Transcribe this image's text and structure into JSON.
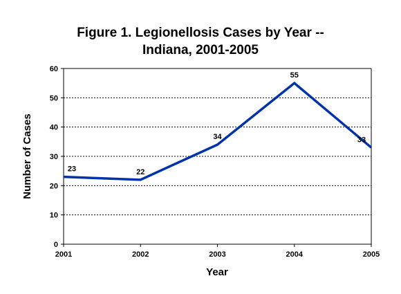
{
  "chart_data": {
    "type": "line",
    "title_line1": "Figure 1. Legionellosis Cases by Year --",
    "title_line2": "Indiana, 2001-2005",
    "xlabel": "Year",
    "ylabel": "Number of Cases",
    "categories": [
      "2001",
      "2002",
      "2003",
      "2004",
      "2005"
    ],
    "y_ticks": [
      "0",
      "10",
      "20",
      "30",
      "40",
      "50",
      "60"
    ],
    "ylim": [
      0,
      60
    ],
    "grid": "horizontal dotted",
    "series": [
      {
        "values": [
          23,
          22,
          34,
          55,
          33
        ],
        "labels": [
          "23",
          "22",
          "34",
          "55",
          "33"
        ],
        "color": "#0033aa"
      }
    ]
  }
}
